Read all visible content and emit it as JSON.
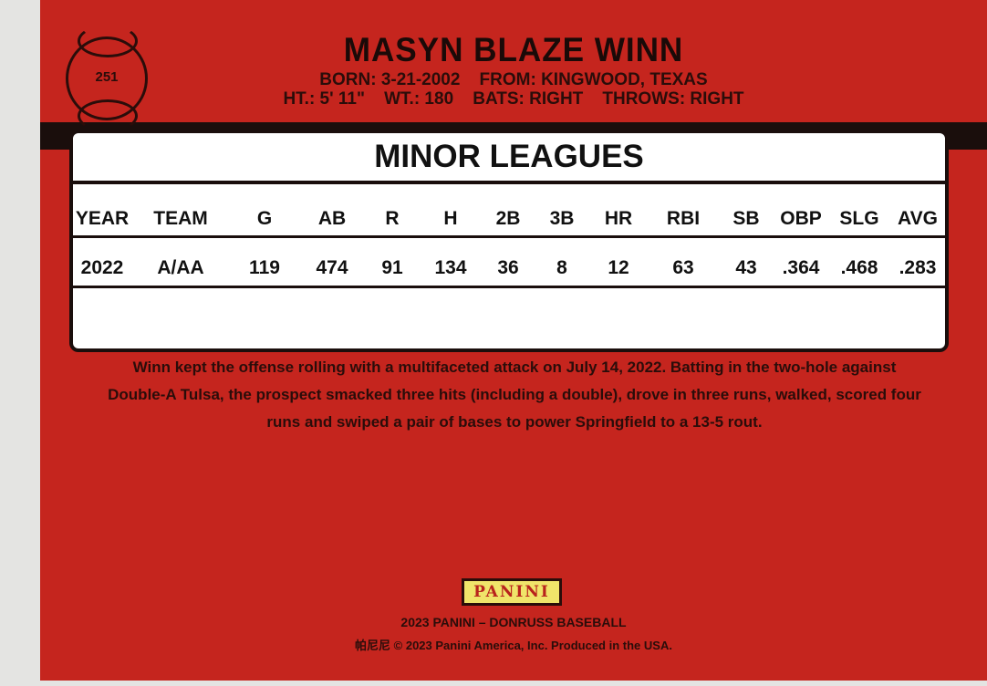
{
  "card": {
    "number": "251",
    "name": "MASYN BLAZE WINN",
    "line1": "BORN: 3-21-2002    FROM: KINGWOOD, TEXAS",
    "line2": "HT.: 5' 11\"    WT.: 180    BATS: RIGHT    THROWS: RIGHT"
  },
  "stats": {
    "title": "MINOR LEAGUES",
    "headers": [
      "YEAR",
      "TEAM",
      "G",
      "AB",
      "R",
      "H",
      "2B",
      "3B",
      "HR",
      "RBI",
      "SB",
      "OBP",
      "SLG",
      "AVG"
    ],
    "rows": [
      [
        "2022",
        "A/AA",
        "119",
        "474",
        "91",
        "134",
        "36",
        "8",
        "12",
        "63",
        "43",
        ".364",
        ".468",
        ".283"
      ]
    ]
  },
  "blurb": "Winn kept the offense rolling with a multifaceted attack on July 14, 2022. Batting in the two-hole against Double-A Tulsa, the prospect smacked three hits (including a double), drove in three runs, walked, scored four runs and swiped a pair of bases to power Springfield to a 13-5 rout.",
  "footer": {
    "logo": "PANINI",
    "line1": "2023 PANINI – DONRUSS BASEBALL",
    "line2": "帕尼尼 © 2023 Panini America, Inc. Produced in the USA."
  },
  "colors": {
    "card": "#c5251e",
    "logo_bg": "#f0e46a"
  }
}
